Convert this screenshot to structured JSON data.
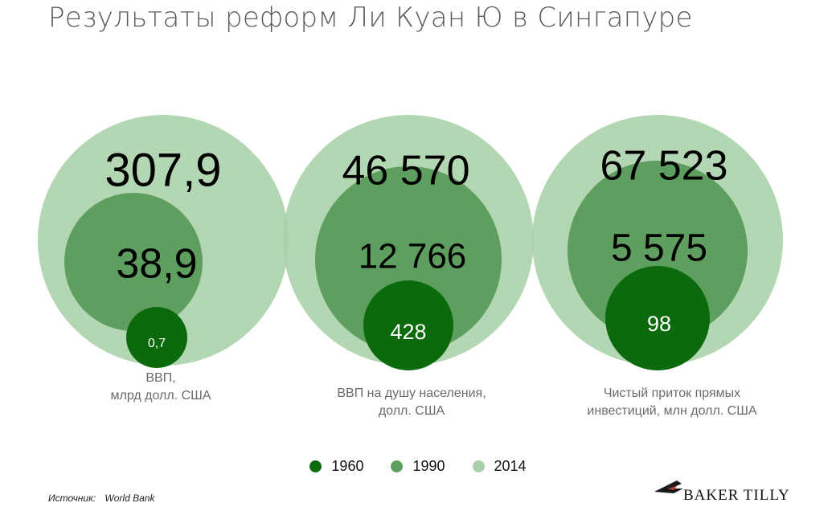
{
  "title": "Результаты реформ Ли Куан Ю в Сингапуре",
  "chart_data": {
    "type": "nested-bubble",
    "series": [
      {
        "name": "1960",
        "color": "#0b6a0b"
      },
      {
        "name": "1990",
        "color": "#5e9e5e"
      },
      {
        "name": "2014",
        "color": "#a9d0a9"
      }
    ],
    "groups": [
      {
        "label_lines": [
          "ВВП,",
          "млрд долл. США"
        ],
        "values": {
          "1960": "0,7",
          "1990": "38,9",
          "2014": "307,9"
        }
      },
      {
        "label_lines": [
          "ВВП на душу населения,",
          "долл. США"
        ],
        "values": {
          "1960": "428",
          "1990": "12 766",
          "2014": "46 570"
        }
      },
      {
        "label_lines": [
          "Чистый приток прямых",
          "инвестиций, млн долл. США"
        ],
        "values": {
          "1960": "98",
          "1990": "5 575",
          "2014": "67 523"
        }
      }
    ]
  },
  "source": {
    "label": "Источник:",
    "value": "World Bank"
  },
  "logo": {
    "text": "BAKER TILLY"
  }
}
